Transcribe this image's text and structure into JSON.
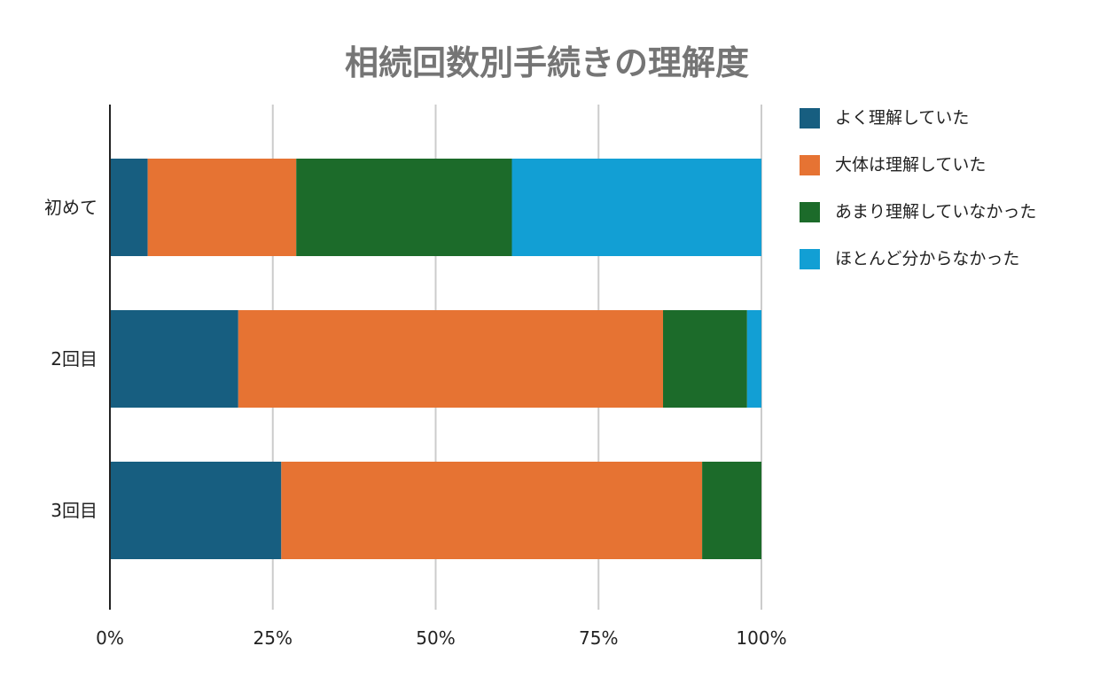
{
  "chart_data": {
    "type": "bar",
    "orientation": "horizontal",
    "stacked": true,
    "percent": true,
    "title": "相続回数別手続きの理解度",
    "xlabel": "",
    "ylabel": "",
    "categories": [
      "初めて",
      "2回目",
      "3回目"
    ],
    "series": [
      {
        "name": "よく理解していた",
        "color": "#175E80",
        "values": [
          5.8,
          19.7,
          26.3
        ]
      },
      {
        "name": "大体は理解していた",
        "color": "#E67333",
        "values": [
          22.8,
          65.2,
          64.6
        ]
      },
      {
        "name": "あまり理解していなかった",
        "color": "#1C6B2A",
        "values": [
          33.1,
          12.9,
          9.1
        ]
      },
      {
        "name": "ほとんど分からなかった",
        "color": "#129FD4",
        "values": [
          38.3,
          2.2,
          0
        ]
      }
    ],
    "xlim": [
      0,
      100
    ],
    "xticks": [
      "0%",
      "25%",
      "50%",
      "75%",
      "100%"
    ],
    "grid": true,
    "legend_position": "right"
  }
}
